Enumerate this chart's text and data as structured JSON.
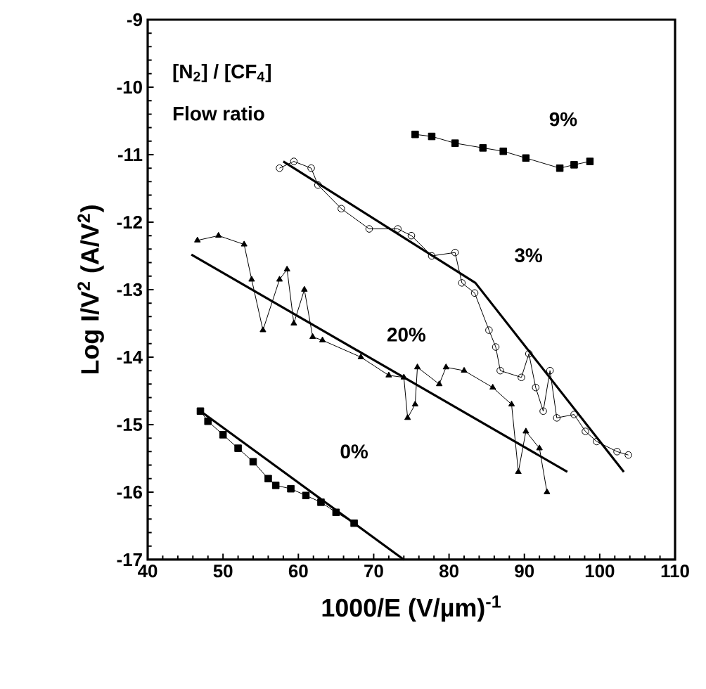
{
  "chart_data": {
    "type": "line",
    "xlabel": "1000/E (V/µm)$^{-1}$",
    "ylabel": "Log I/V$^{2}$ (A/V$^{2}$)",
    "xlim": [
      40,
      110
    ],
    "ylim": [
      -17,
      -9
    ],
    "xticks": [
      40,
      50,
      60,
      70,
      80,
      90,
      100,
      110
    ],
    "yticks": [
      -17,
      -16,
      -15,
      -14,
      -13,
      -12,
      -11,
      -10,
      -9
    ],
    "grid": false,
    "series": [
      {
        "name": "0%",
        "color": "#000000",
        "marker": "square",
        "x": [
          47,
          48,
          50,
          52,
          54,
          56,
          57,
          59,
          61,
          63,
          65,
          67.4
        ],
        "values": [
          -14.8,
          -14.95,
          -15.15,
          -15.35,
          -15.55,
          -15.8,
          -15.9,
          -15.95,
          -16.05,
          -16.15,
          -16.3,
          -16.46
        ]
      },
      {
        "name": "20%",
        "color": "#000000",
        "marker": "triangle",
        "x": [
          46.6,
          49.4,
          52.8,
          53.8,
          55.3,
          57.5,
          58.5,
          59.4,
          60.8,
          61.9,
          63.2,
          68.3,
          72,
          74,
          74.5,
          75.5,
          75.8,
          78.7,
          79.6,
          82,
          85.8,
          88.3,
          89.2,
          90.2,
          92,
          93
        ],
        "values": [
          -12.27,
          -12.2,
          -12.33,
          -12.85,
          -13.6,
          -12.85,
          -12.7,
          -13.5,
          -13.0,
          -13.7,
          -13.75,
          -14.0,
          -14.27,
          -14.3,
          -14.9,
          -14.7,
          -14.15,
          -14.4,
          -14.15,
          -14.2,
          -14.45,
          -14.7,
          -15.7,
          -15.1,
          -15.35,
          -16.0
        ]
      },
      {
        "name": "3%",
        "color": "#000000",
        "marker": "circle",
        "x": [
          57.5,
          59.4,
          61.7,
          62.6,
          65.7,
          69.4,
          73.2,
          75,
          77.7,
          80.8,
          81.7,
          83.4,
          85.3,
          86.2,
          86.8,
          89.6,
          90.6,
          91.5,
          92.5,
          93.4,
          94.3,
          96.6,
          98.1,
          99.6,
          102.3,
          103.8
        ],
        "values": [
          -11.2,
          -11.1,
          -11.2,
          -11.45,
          -11.8,
          -12.1,
          -12.1,
          -12.2,
          -12.5,
          -12.45,
          -12.9,
          -13.05,
          -13.6,
          -13.85,
          -14.2,
          -14.3,
          -13.95,
          -14.45,
          -14.8,
          -14.2,
          -14.9,
          -14.85,
          -15.1,
          -15.25,
          -15.4,
          -15.45
        ]
      },
      {
        "name": "9%",
        "color": "#000000",
        "marker": "square",
        "x": [
          75.5,
          77.7,
          80.8,
          84.5,
          87.2,
          90.2,
          94.7,
          96.6,
          98.7
        ],
        "values": [
          -10.7,
          -10.73,
          -10.83,
          -10.9,
          -10.95,
          -11.05,
          -11.2,
          -11.15,
          -11.1
        ]
      },
      {
        "color": "#000000",
        "marker": "none",
        "x": [
          47,
          74
        ],
        "values": [
          -14.8,
          -17
        ]
      },
      {
        "color": "#000000",
        "marker": "none",
        "x": [
          45.8,
          95.7
        ],
        "values": [
          -12.48,
          -15.7
        ]
      },
      {
        "color": "#000000",
        "marker": "none",
        "x": [
          58,
          83.5,
          103.2
        ],
        "values": [
          -11.1,
          -12.9,
          -15.7
        ]
      }
    ],
    "annotations": [
      "[N$_{2}$] / [CF$_{4}$]",
      "Flow ratio"
    ]
  }
}
